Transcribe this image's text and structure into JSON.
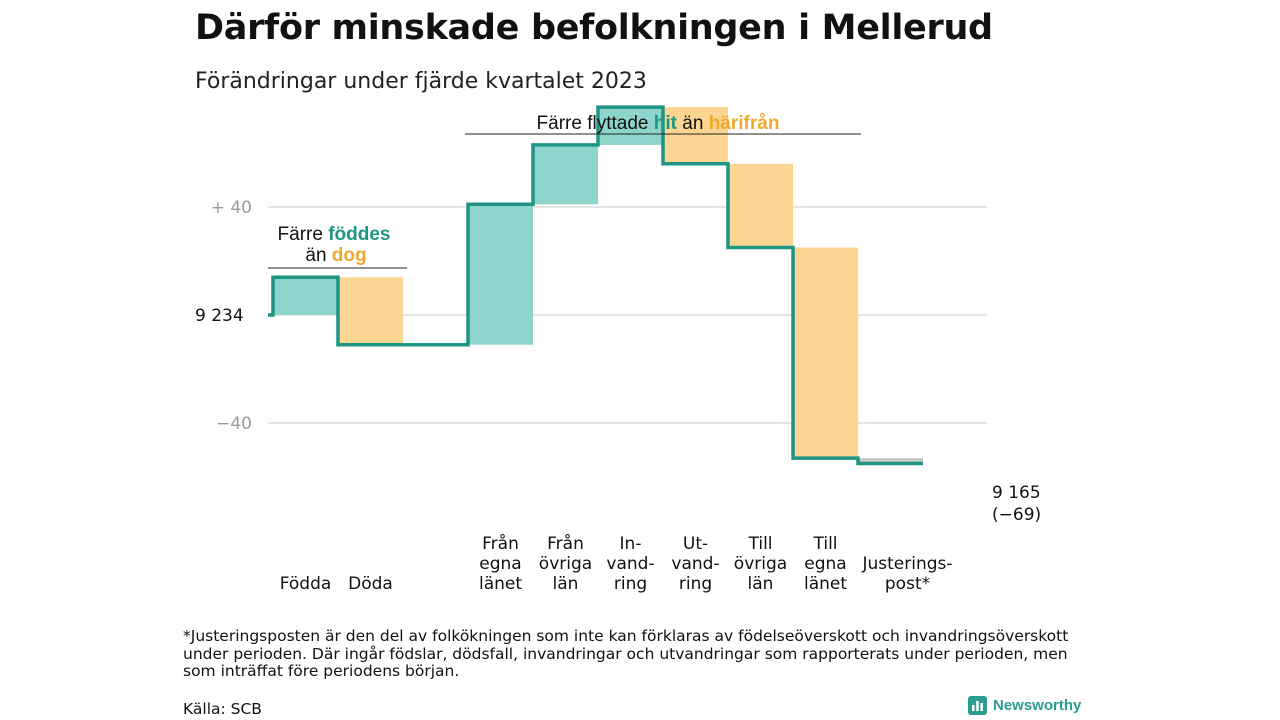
{
  "header": {
    "title": "Därför minskade befolkningen i Mellerud",
    "subtitle": "Förändringar under fjärde kvartalet 2023"
  },
  "chart_data": {
    "type": "waterfall",
    "start_value": 9234,
    "end_value": 9165,
    "start_label": "9  234",
    "end_label_value": "9 165",
    "end_label_change": "(−69)",
    "y_ticks": [
      {
        "value": 40,
        "label": "+  40"
      },
      {
        "value": 0,
        "label": ""
      },
      {
        "value": -40,
        "label": "−40"
      }
    ],
    "ylim": [
      -65,
      65
    ],
    "grid": true,
    "steps": [
      {
        "label_lines": [
          "Födda"
        ],
        "change": 14,
        "kind": "gain"
      },
      {
        "label_lines": [
          "Döda"
        ],
        "change": -25,
        "kind": "loss"
      },
      {
        "label_lines": [],
        "change": 0,
        "kind": "spacer"
      },
      {
        "label_lines": [
          "Från",
          "egna",
          "länet"
        ],
        "change": 52,
        "kind": "gain"
      },
      {
        "label_lines": [
          "Från",
          "övriga",
          "län"
        ],
        "change": 22,
        "kind": "gain"
      },
      {
        "label_lines": [
          "In-",
          "vand-",
          "ring"
        ],
        "change": 14,
        "kind": "gain"
      },
      {
        "label_lines": [
          "Ut-",
          "vand-",
          "ring"
        ],
        "change": -21,
        "kind": "loss"
      },
      {
        "label_lines": [
          "Till",
          "övriga",
          "län"
        ],
        "change": -31,
        "kind": "loss"
      },
      {
        "label_lines": [
          "Till",
          "egna",
          "länet"
        ],
        "change": -78,
        "kind": "loss"
      },
      {
        "label_lines": [
          "Justerings-",
          "post*"
        ],
        "change": -2,
        "kind": "adjust"
      }
    ],
    "annotations": {
      "births_deaths": {
        "line1_prefix": "Färre ",
        "line1_highlight": "föddes",
        "line2_prefix": "än ",
        "line2_highlight": "dog"
      },
      "migration": {
        "prefix": "Färre flyttade ",
        "highlight_in": "hit",
        "middle": " än ",
        "highlight_out": "härifrån"
      }
    },
    "colors": {
      "line": "#1e9585",
      "gain_fill": "#8dd5cb",
      "loss_fill": "#fad692",
      "adjust_fill": "#c8c8c8",
      "grid": "#dcdcdc",
      "tick_text": "#9a9a9a",
      "gain_text": "#1e9585",
      "loss_text": "#f0a92e"
    }
  },
  "footnote": {
    "text": "*Justeringsposten är den del av folkökningen som inte kan förklaras av födelseöverskott och invandringsöverskott under perioden. Där ingår födslar, dödsfall, invandringar och utvandringar som rapporterats under perioden, men som inträffat före periodens början."
  },
  "source": {
    "text": "Källa: SCB"
  },
  "brand": {
    "name": "Newsworthy",
    "icon": "newsworthy-logo-icon"
  }
}
